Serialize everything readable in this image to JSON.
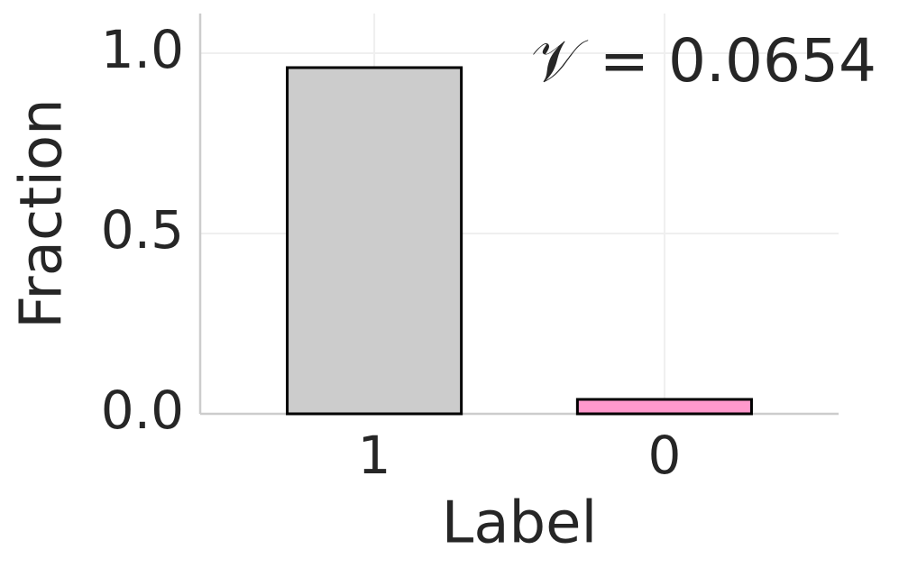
{
  "chart_data": {
    "type": "bar",
    "xlabel": "Label",
    "ylabel": "Fraction",
    "categories": [
      "1",
      "0"
    ],
    "values": [
      0.96,
      0.04
    ],
    "colors": [
      "#cccccc",
      "#ff99cc"
    ],
    "annotation": "𝒱 = 0.0654",
    "ylim": [
      0,
      1.11
    ],
    "yticks": [
      {
        "value": 0,
        "label": "0.0"
      },
      0.5,
      {
        "value": 1,
        "label": "1.0"
      }
    ],
    "grid": true
  }
}
